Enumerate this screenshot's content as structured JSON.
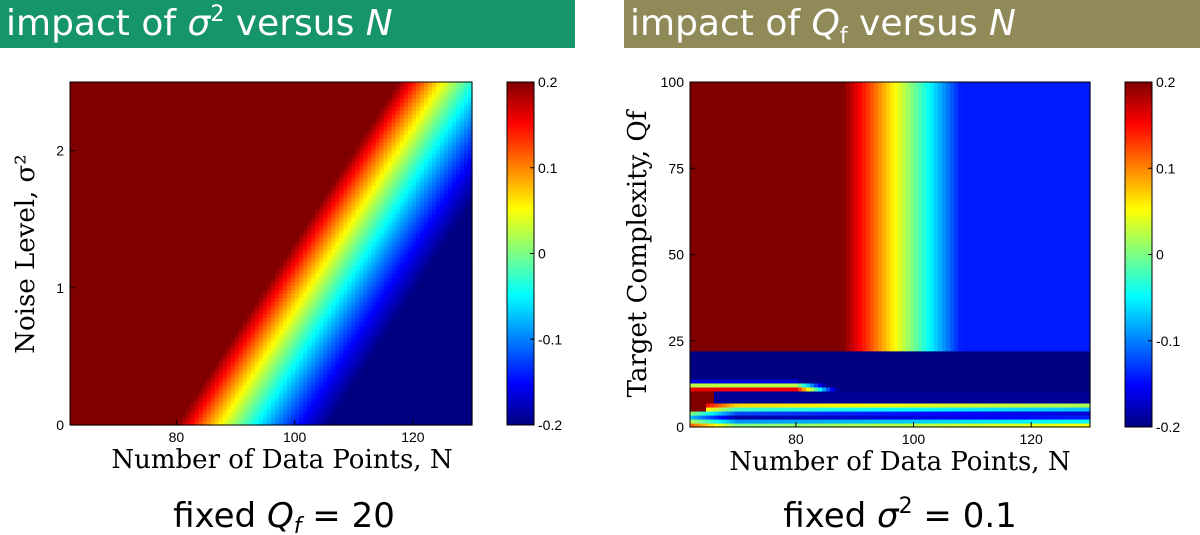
{
  "chart_data": [
    {
      "type": "heatmap",
      "title": "impact of σ² versus N",
      "title_parts": {
        "pre": "impact of ",
        "sym": "σ",
        "sup": "2",
        "post": " versus ",
        "n": "N"
      },
      "xlabel": "Number of Data Points, N",
      "ylabel": "Noise Level, σ²",
      "xlim": [
        62,
        130
      ],
      "ylim": [
        0,
        2.5
      ],
      "x_ticks": [
        80,
        100,
        120
      ],
      "y_ticks": [
        0,
        1,
        2
      ],
      "colorbar": {
        "range": [
          -0.2,
          0.2
        ],
        "ticks": [
          "0.2",
          "0.1",
          "0",
          "-0.1",
          "-0.2"
        ],
        "colormap": "jet"
      },
      "caption": {
        "pre": "fixed ",
        "sym": "Q",
        "sub": "f",
        "post": " = 20"
      },
      "surface": "boundary N ≈ 80 + 15·σ², value decreasing with N; red (0.2) region at low N / high noise"
    },
    {
      "type": "heatmap",
      "title": "impact of Qf versus N",
      "title_parts": {
        "pre": "impact of ",
        "sym": "Q",
        "sub": "f",
        "post": " versus ",
        "n": "N"
      },
      "xlabel": "Number of Data Points, N",
      "ylabel": "Target Complexity, Qf",
      "xlim": [
        62,
        130
      ],
      "ylim": [
        0,
        100
      ],
      "x_ticks": [
        80,
        100,
        120
      ],
      "y_ticks": [
        0,
        25,
        50,
        75,
        100
      ],
      "colorbar": {
        "range": [
          -0.2,
          0.2
        ],
        "ticks": [
          "0.2",
          "0.1",
          "0",
          "-0.1",
          "-0.2"
        ],
        "colormap": "jet"
      },
      "caption": {
        "pre": "fixed ",
        "sym": "σ",
        "sup": "2",
        "post": " = 0.1"
      },
      "surface": "saturated red for N below ~88 when Qf > 10; blue band just above N axis near Qf ≈ 3; dark blue strip near Qf ≈ 10"
    }
  ],
  "colors": {
    "banner_left": "#17956a",
    "banner_right": "#8f8a57",
    "banner_text": "#ffffff"
  }
}
